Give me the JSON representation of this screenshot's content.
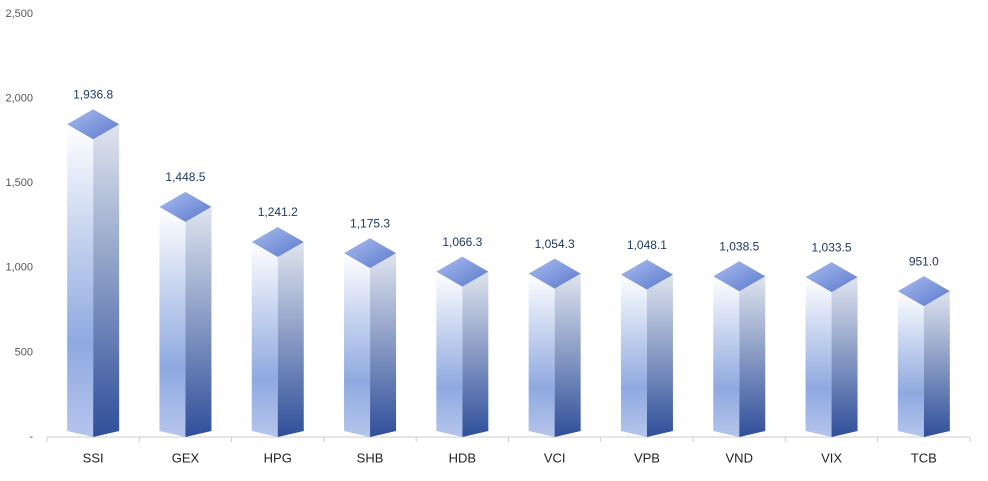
{
  "chart_data": {
    "type": "bar3d",
    "categories": [
      "SSI",
      "GEX",
      "HPG",
      "SHB",
      "HDB",
      "VCI",
      "VPB",
      "VND",
      "VIX",
      "TCB"
    ],
    "values": [
      1936.8,
      1448.5,
      1241.2,
      1175.3,
      1066.3,
      1054.3,
      1048.1,
      1038.5,
      1033.5,
      951.0
    ],
    "value_labels": [
      "1,936.8",
      "1,448.5",
      "1,241.2",
      "1,175.3",
      "1,066.3",
      "1,054.3",
      "1,048.1",
      "1,038.5",
      "1,033.5",
      "951.0"
    ],
    "color": "#2f4f9a",
    "ylim": [
      0,
      2500
    ],
    "yticks": [
      {
        "value": 0,
        "label": "-"
      },
      500,
      {
        "value": 1000,
        "label": "1,000"
      },
      {
        "value": 1500,
        "label": "1,500"
      },
      {
        "value": 2000,
        "label": "2,000"
      },
      {
        "value": 2500,
        "label": "2,500"
      }
    ]
  }
}
